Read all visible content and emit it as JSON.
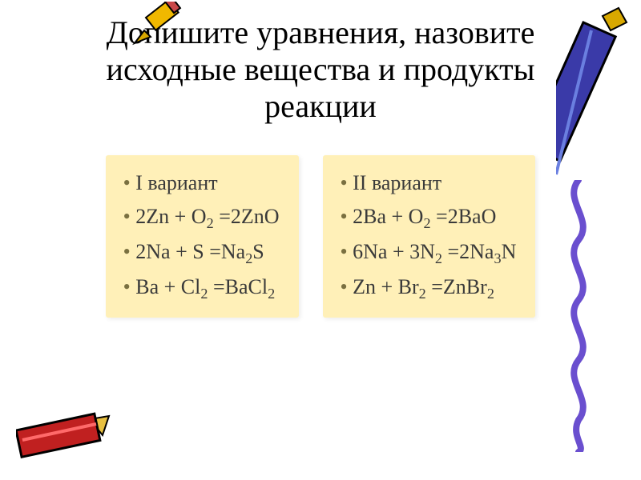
{
  "title": "Допишите уравнения, назовите исходные вещества и продукты реакции",
  "title_fontsize": 40,
  "card_bg": "#fff0b8",
  "card_fontsize": 26,
  "bullet_color": "#7a7040",
  "text_color": "#3a3a3a",
  "left": {
    "header": "I вариант",
    "eq1": "2Zn + O₂ =2ZnO",
    "eq2": "2Na + S =Na₂S",
    "eq3": "Ba + Cl₂ =BaCl₂"
  },
  "right": {
    "header": "II вариант",
    "eq1": "2Ba + O₂ =2BaO",
    "eq2": "6Na + 3N₂ =2Na₃N",
    "eq3": "Zn + Br₂ =ZnBr₂"
  },
  "decorations": {
    "pencil_top_color": "#f0b800",
    "crayon_right_body": "#3a3aa8",
    "crayon_right_tip": "#d8a800",
    "squiggle_color": "#6a4fcf",
    "crayon_bl_body": "#c02020",
    "crayon_bl_tip": "#e8c040"
  }
}
